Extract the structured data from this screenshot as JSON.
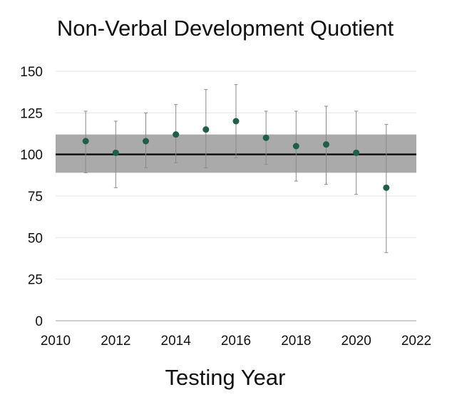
{
  "chart_data": {
    "type": "scatter",
    "title": "Non-Verbal Development Quotient",
    "xlabel": "Testing Year",
    "ylabel": "",
    "xlim": [
      2010,
      2022
    ],
    "ylim": [
      0,
      150
    ],
    "x_ticks": [
      2010,
      2012,
      2014,
      2016,
      2018,
      2020,
      2022
    ],
    "y_ticks": [
      0,
      25,
      50,
      75,
      100,
      125,
      150
    ],
    "grid": true,
    "reference_line": 100,
    "reference_band": [
      89,
      112
    ],
    "points": [
      {
        "x": 2011,
        "y": 108,
        "low": 89,
        "high": 126
      },
      {
        "x": 2012,
        "y": 101,
        "low": 80,
        "high": 120
      },
      {
        "x": 2013,
        "y": 108,
        "low": 92,
        "high": 125
      },
      {
        "x": 2014,
        "y": 112,
        "low": 95,
        "high": 130
      },
      {
        "x": 2015,
        "y": 115,
        "low": 92,
        "high": 139
      },
      {
        "x": 2016,
        "y": 120,
        "low": 98,
        "high": 142
      },
      {
        "x": 2017,
        "y": 110,
        "low": 94,
        "high": 126
      },
      {
        "x": 2018,
        "y": 105,
        "low": 84,
        "high": 126
      },
      {
        "x": 2019,
        "y": 106,
        "low": 82,
        "high": 129
      },
      {
        "x": 2020,
        "y": 101,
        "low": 76,
        "high": 126
      },
      {
        "x": 2021,
        "y": 80,
        "low": 41,
        "high": 118
      }
    ],
    "colors": {
      "point": "#1f5f4a",
      "errorbar": "#8a8a8a",
      "band": "#aaaaaa",
      "reference_line": "#111111",
      "grid": "#e6e6e6",
      "axis": "#bdbdbd"
    }
  }
}
